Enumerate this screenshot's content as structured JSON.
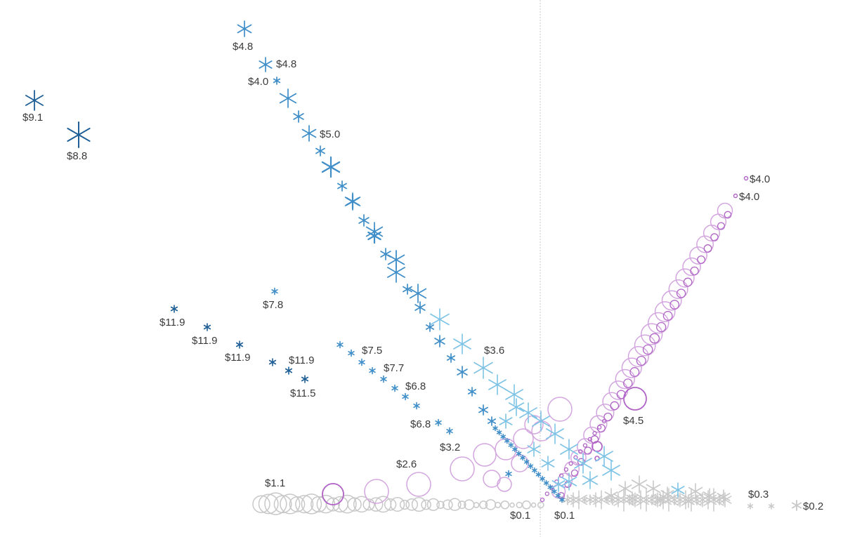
{
  "chart_data": {
    "type": "scatter",
    "title": "",
    "xlabel": "",
    "ylabel": "",
    "grid": false,
    "colors": {
      "dark_blue": "#1f5f96",
      "mid_blue": "#3f8ec8",
      "light_blue": "#7ec3e6",
      "purple": "#b065c6",
      "light_purple": "#d3a6df",
      "gray": "#c8c8c8"
    },
    "labels": [
      {
        "text": "$9.1"
      },
      {
        "text": "$8.8"
      },
      {
        "text": "$4.8"
      },
      {
        "text": "$4.8"
      },
      {
        "text": "$4.0"
      },
      {
        "text": "$5.0"
      },
      {
        "text": "$7.8"
      },
      {
        "text": "$11.9"
      },
      {
        "text": "$11.9"
      },
      {
        "text": "$11.9"
      },
      {
        "text": "$11.9"
      },
      {
        "text": "$11.5"
      },
      {
        "text": "$7.5"
      },
      {
        "text": "$7.7"
      },
      {
        "text": "$6.8"
      },
      {
        "text": "$6.8"
      },
      {
        "text": "$3.2"
      },
      {
        "text": "$3.6"
      },
      {
        "text": "$2.6"
      },
      {
        "text": "$1.1"
      },
      {
        "text": "$0.1"
      },
      {
        "text": "$0.1"
      },
      {
        "text": "$4.5"
      },
      {
        "text": "$4.0"
      },
      {
        "text": "$4.0"
      },
      {
        "text": "$0.3"
      },
      {
        "text": "$0.2"
      }
    ]
  }
}
